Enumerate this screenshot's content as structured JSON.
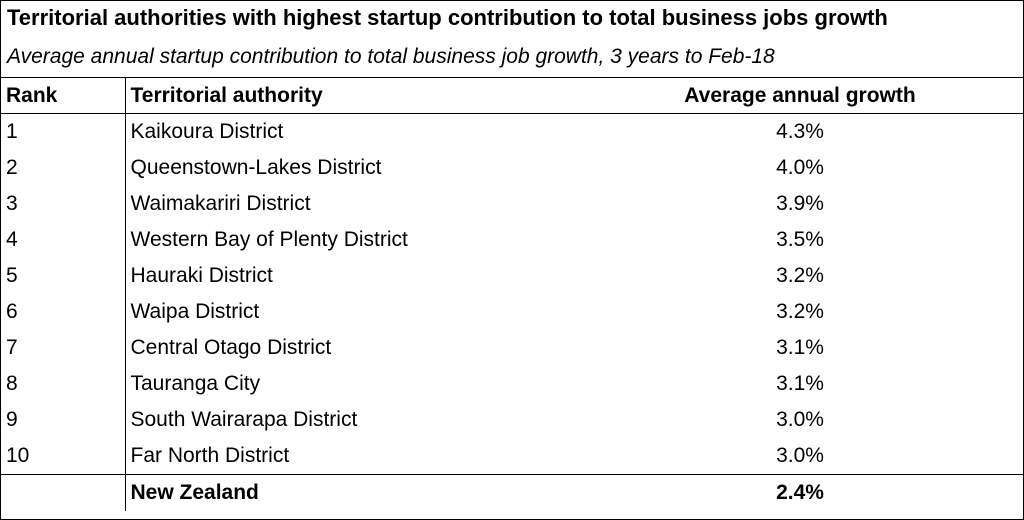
{
  "title": "Territorial authorities with highest startup contribution to total business jobs growth",
  "subtitle": "Average annual startup contribution to total business job growth, 3 years to Feb-18",
  "columns": {
    "rank": "Rank",
    "authority": "Territorial authority",
    "growth": "Average annual growth"
  },
  "rows": [
    {
      "rank": "1",
      "authority": "Kaikoura District",
      "growth": "4.3%"
    },
    {
      "rank": "2",
      "authority": "Queenstown-Lakes District",
      "growth": "4.0%"
    },
    {
      "rank": "3",
      "authority": "Waimakariri District",
      "growth": "3.9%"
    },
    {
      "rank": "4",
      "authority": "Western Bay of Plenty District",
      "growth": "3.5%"
    },
    {
      "rank": "5",
      "authority": "Hauraki District",
      "growth": "3.2%"
    },
    {
      "rank": "6",
      "authority": "Waipa District",
      "growth": "3.2%"
    },
    {
      "rank": "7",
      "authority": "Central Otago District",
      "growth": "3.1%"
    },
    {
      "rank": "8",
      "authority": "Tauranga City",
      "growth": "3.1%"
    },
    {
      "rank": "9",
      "authority": "South Wairarapa District",
      "growth": "3.0%"
    },
    {
      "rank": "10",
      "authority": "Far North District",
      "growth": "3.0%"
    }
  ],
  "total": {
    "rank": "",
    "authority": "New Zealand",
    "growth": "2.4%"
  }
}
